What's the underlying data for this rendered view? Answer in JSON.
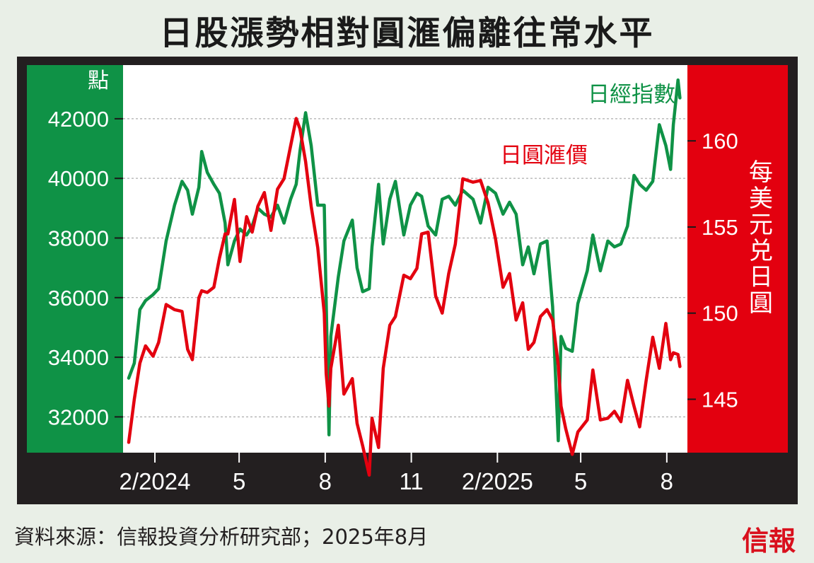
{
  "title": "日股漲勢相對圓滙偏離往常水平",
  "footer": {
    "source": "資料來源：信報投資分析研究部；2025年8月",
    "logo": "信報"
  },
  "colors": {
    "green": "#0f9246",
    "red": "#e3000f",
    "frame": "#231f20",
    "background": "#e9efe7"
  },
  "chart_data": {
    "type": "line",
    "x_axis": {
      "start": "2024-01-01",
      "end": "2025-08-20",
      "ticks": [
        {
          "date": "2024-02-01",
          "label": "2/2024"
        },
        {
          "date": "2024-05-01",
          "label": "5"
        },
        {
          "date": "2024-08-01",
          "label": "8"
        },
        {
          "date": "2024-11-01",
          "label": "11"
        },
        {
          "date": "2025-02-01",
          "label": "2/2025"
        },
        {
          "date": "2025-05-01",
          "label": "5"
        },
        {
          "date": "2025-08-01",
          "label": "8"
        }
      ]
    },
    "y_left": {
      "label": "點",
      "range": [
        30800,
        43800
      ],
      "ticks": [
        32000,
        34000,
        36000,
        38000,
        40000,
        42000
      ],
      "grid": true
    },
    "y_right": {
      "label": "每美元兑日圓",
      "range": [
        141.9,
        164.4
      ],
      "ticks": [
        145,
        150,
        155,
        160
      ]
    },
    "series": [
      {
        "name": "日經指數",
        "axis": "left",
        "color": "#0f9246",
        "data": [
          [
            "2024-01-04",
            33300
          ],
          [
            "2024-01-10",
            33800
          ],
          [
            "2024-01-16",
            35600
          ],
          [
            "2024-01-22",
            35900
          ],
          [
            "2024-01-30",
            36100
          ],
          [
            "2024-02-05",
            36300
          ],
          [
            "2024-02-13",
            37900
          ],
          [
            "2024-02-22",
            39100
          ],
          [
            "2024-03-01",
            39900
          ],
          [
            "2024-03-07",
            39600
          ],
          [
            "2024-03-12",
            38800
          ],
          [
            "2024-03-19",
            39700
          ],
          [
            "2024-03-22",
            40900
          ],
          [
            "2024-03-28",
            40200
          ],
          [
            "2024-04-04",
            39800
          ],
          [
            "2024-04-10",
            39500
          ],
          [
            "2024-04-16",
            38500
          ],
          [
            "2024-04-19",
            37100
          ],
          [
            "2024-04-26",
            37900
          ],
          [
            "2024-05-02",
            38300
          ],
          [
            "2024-05-09",
            38100
          ],
          [
            "2024-05-15",
            38400
          ],
          [
            "2024-05-21",
            39000
          ],
          [
            "2024-05-28",
            38800
          ],
          [
            "2024-06-04",
            38700
          ],
          [
            "2024-06-11",
            39100
          ],
          [
            "2024-06-18",
            38500
          ],
          [
            "2024-06-25",
            39300
          ],
          [
            "2024-07-01",
            39800
          ],
          [
            "2024-07-05",
            40900
          ],
          [
            "2024-07-11",
            42200
          ],
          [
            "2024-07-17",
            41100
          ],
          [
            "2024-07-24",
            39100
          ],
          [
            "2024-07-31",
            39100
          ],
          [
            "2024-08-02",
            35900
          ],
          [
            "2024-08-05",
            31400
          ],
          [
            "2024-08-07",
            34700
          ],
          [
            "2024-08-15",
            36700
          ],
          [
            "2024-08-21",
            37900
          ],
          [
            "2024-08-30",
            38600
          ],
          [
            "2024-09-04",
            37000
          ],
          [
            "2024-09-10",
            36200
          ],
          [
            "2024-09-17",
            36300
          ],
          [
            "2024-09-20",
            37700
          ],
          [
            "2024-09-27",
            39800
          ],
          [
            "2024-10-02",
            37800
          ],
          [
            "2024-10-09",
            39300
          ],
          [
            "2024-10-15",
            39900
          ],
          [
            "2024-10-24",
            38100
          ],
          [
            "2024-10-31",
            39100
          ],
          [
            "2024-11-07",
            39500
          ],
          [
            "2024-11-12",
            39400
          ],
          [
            "2024-11-19",
            38400
          ],
          [
            "2024-11-27",
            38100
          ],
          [
            "2024-12-04",
            39300
          ],
          [
            "2024-12-11",
            39400
          ],
          [
            "2024-12-18",
            39100
          ],
          [
            "2024-12-26",
            39600
          ],
          [
            "2025-01-06",
            39300
          ],
          [
            "2025-01-14",
            38500
          ],
          [
            "2025-01-22",
            39700
          ],
          [
            "2025-01-30",
            39500
          ],
          [
            "2025-02-07",
            38800
          ],
          [
            "2025-02-14",
            39200
          ],
          [
            "2025-02-21",
            38800
          ],
          [
            "2025-02-28",
            37100
          ],
          [
            "2025-03-06",
            37700
          ],
          [
            "2025-03-12",
            36800
          ],
          [
            "2025-03-19",
            37800
          ],
          [
            "2025-03-26",
            37900
          ],
          [
            "2025-04-01",
            35700
          ],
          [
            "2025-04-07",
            31200
          ],
          [
            "2025-04-10",
            34700
          ],
          [
            "2025-04-15",
            34300
          ],
          [
            "2025-04-22",
            34200
          ],
          [
            "2025-04-28",
            35800
          ],
          [
            "2025-05-08",
            36900
          ],
          [
            "2025-05-14",
            38100
          ],
          [
            "2025-05-22",
            36900
          ],
          [
            "2025-05-30",
            37900
          ],
          [
            "2025-06-06",
            37700
          ],
          [
            "2025-06-13",
            37800
          ],
          [
            "2025-06-20",
            38400
          ],
          [
            "2025-06-27",
            40100
          ],
          [
            "2025-07-03",
            39800
          ],
          [
            "2025-07-10",
            39600
          ],
          [
            "2025-07-17",
            39900
          ],
          [
            "2025-07-24",
            41800
          ],
          [
            "2025-07-31",
            41100
          ],
          [
            "2025-08-05",
            40300
          ],
          [
            "2025-08-08",
            41800
          ],
          [
            "2025-08-13",
            43300
          ],
          [
            "2025-08-15",
            42700
          ]
        ]
      },
      {
        "name": "日圓滙價",
        "axis": "right",
        "color": "#e3000f",
        "data": [
          [
            "2024-01-04",
            142.5
          ],
          [
            "2024-01-10",
            145.0
          ],
          [
            "2024-01-16",
            147.1
          ],
          [
            "2024-01-22",
            148.1
          ],
          [
            "2024-01-30",
            147.5
          ],
          [
            "2024-02-05",
            148.3
          ],
          [
            "2024-02-13",
            150.5
          ],
          [
            "2024-02-22",
            150.2
          ],
          [
            "2024-03-01",
            150.1
          ],
          [
            "2024-03-07",
            147.9
          ],
          [
            "2024-03-12",
            147.3
          ],
          [
            "2024-03-19",
            150.9
          ],
          [
            "2024-03-22",
            151.3
          ],
          [
            "2024-03-28",
            151.2
          ],
          [
            "2024-04-04",
            151.5
          ],
          [
            "2024-04-10",
            153.2
          ],
          [
            "2024-04-16",
            154.6
          ],
          [
            "2024-04-19",
            154.6
          ],
          [
            "2024-04-26",
            156.6
          ],
          [
            "2024-05-02",
            153.0
          ],
          [
            "2024-05-09",
            155.6
          ],
          [
            "2024-05-15",
            154.7
          ],
          [
            "2024-05-21",
            156.2
          ],
          [
            "2024-05-28",
            157.0
          ],
          [
            "2024-06-04",
            154.8
          ],
          [
            "2024-06-11",
            157.2
          ],
          [
            "2024-06-18",
            157.8
          ],
          [
            "2024-06-25",
            159.7
          ],
          [
            "2024-07-01",
            161.3
          ],
          [
            "2024-07-05",
            160.7
          ],
          [
            "2024-07-11",
            158.8
          ],
          [
            "2024-07-17",
            156.2
          ],
          [
            "2024-07-24",
            153.8
          ],
          [
            "2024-07-31",
            150.0
          ],
          [
            "2024-08-02",
            146.5
          ],
          [
            "2024-08-05",
            144.6
          ],
          [
            "2024-08-07",
            146.8
          ],
          [
            "2024-08-15",
            149.3
          ],
          [
            "2024-08-21",
            145.3
          ],
          [
            "2024-08-30",
            146.2
          ],
          [
            "2024-09-04",
            143.6
          ],
          [
            "2024-09-10",
            142.3
          ],
          [
            "2024-09-17",
            140.6
          ],
          [
            "2024-09-20",
            143.9
          ],
          [
            "2024-09-27",
            142.2
          ],
          [
            "2024-10-02",
            146.8
          ],
          [
            "2024-10-09",
            149.3
          ],
          [
            "2024-10-15",
            149.8
          ],
          [
            "2024-10-24",
            152.2
          ],
          [
            "2024-10-31",
            152.0
          ],
          [
            "2024-11-07",
            152.6
          ],
          [
            "2024-11-12",
            154.6
          ],
          [
            "2024-11-19",
            154.7
          ],
          [
            "2024-11-27",
            151.0
          ],
          [
            "2024-12-04",
            150.0
          ],
          [
            "2024-12-11",
            152.3
          ],
          [
            "2024-12-18",
            154.0
          ],
          [
            "2024-12-26",
            157.8
          ],
          [
            "2025-01-06",
            157.6
          ],
          [
            "2025-01-14",
            157.7
          ],
          [
            "2025-01-22",
            156.4
          ],
          [
            "2025-01-30",
            154.3
          ],
          [
            "2025-02-07",
            151.5
          ],
          [
            "2025-02-14",
            152.3
          ],
          [
            "2025-02-21",
            149.6
          ],
          [
            "2025-02-28",
            150.6
          ],
          [
            "2025-03-06",
            147.9
          ],
          [
            "2025-03-12",
            148.3
          ],
          [
            "2025-03-19",
            149.8
          ],
          [
            "2025-03-26",
            150.2
          ],
          [
            "2025-04-01",
            149.6
          ],
          [
            "2025-04-07",
            147.0
          ],
          [
            "2025-04-10",
            144.6
          ],
          [
            "2025-04-15",
            143.3
          ],
          [
            "2025-04-22",
            141.8
          ],
          [
            "2025-04-28",
            143.1
          ],
          [
            "2025-05-08",
            143.8
          ],
          [
            "2025-05-14",
            146.7
          ],
          [
            "2025-05-22",
            143.8
          ],
          [
            "2025-05-30",
            143.9
          ],
          [
            "2025-06-06",
            144.3
          ],
          [
            "2025-06-13",
            143.7
          ],
          [
            "2025-06-20",
            146.1
          ],
          [
            "2025-06-27",
            144.6
          ],
          [
            "2025-07-03",
            143.4
          ],
          [
            "2025-07-10",
            146.1
          ],
          [
            "2025-07-17",
            148.6
          ],
          [
            "2025-07-24",
            146.8
          ],
          [
            "2025-07-31",
            149.4
          ],
          [
            "2025-08-05",
            147.3
          ],
          [
            "2025-08-08",
            147.7
          ],
          [
            "2025-08-13",
            147.6
          ],
          [
            "2025-08-15",
            146.9
          ]
        ]
      }
    ]
  }
}
